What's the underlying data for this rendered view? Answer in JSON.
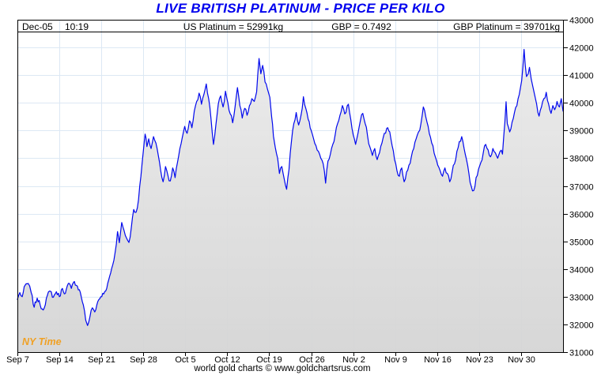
{
  "title": "LIVE BRITISH PLATINUM - PRICE PER KILO",
  "header": {
    "date": "Dec-05",
    "time": "10:19",
    "us_platinum": "US Platinum = 52991kg",
    "gbp_rate": "GBP = 0.7492",
    "gbp_platinum": "GBP Platinum = 39701kg"
  },
  "ny_time_label": "NY Time",
  "footer": "world gold charts © www.goldchartsrus.com",
  "colors": {
    "title_blue": "#0000EE",
    "line_blue": "#0008EE",
    "grid_blue": "#dce8f4",
    "fill_gray_top": "#eaeaea",
    "fill_gray_bottom": "#d5d5d5",
    "ny_time_orange": "#F0A125",
    "axis_black": "#000000"
  },
  "chart_data": {
    "type": "area",
    "title": "LIVE BRITISH PLATINUM - PRICE PER KILO",
    "xlabel": "",
    "ylabel": "",
    "grid": true,
    "legend": false,
    "ylim": [
      31000,
      43000
    ],
    "y_ticks": [
      31000,
      32000,
      33000,
      34000,
      35000,
      36000,
      37000,
      38000,
      39000,
      40000,
      41000,
      42000,
      43000
    ],
    "x_tick_labels": [
      "Sep 7",
      "Sep 14",
      "Sep 21",
      "Sep 28",
      "Oct 5",
      "Oct 12",
      "Oct 19",
      "Oct 26",
      "Nov 2",
      "Nov 9",
      "Nov 16",
      "Nov 23",
      "Nov 30"
    ],
    "x_tick_days": [
      0,
      7,
      14,
      21,
      28,
      35,
      42,
      49,
      56,
      63,
      70,
      77,
      84
    ],
    "x_domain_days": [
      0,
      91
    ],
    "start_date": "Sep 7",
    "end_datetime": "Dec-05 10:19",
    "last_value": 39701,
    "series": [
      {
        "name": "GBP Platinum (GBP per kilo)",
        "points": [
          [
            0,
            32900
          ],
          [
            0.4,
            33150
          ],
          [
            0.8,
            33000
          ],
          [
            1.3,
            33420
          ],
          [
            1.8,
            33480
          ],
          [
            2.3,
            33150
          ],
          [
            2.8,
            32620
          ],
          [
            3.3,
            32950
          ],
          [
            3.8,
            32700
          ],
          [
            4.3,
            32520
          ],
          [
            5,
            33050
          ],
          [
            5.5,
            33200
          ],
          [
            6,
            32980
          ],
          [
            6.5,
            33180
          ],
          [
            7,
            33000
          ],
          [
            7.5,
            33300
          ],
          [
            8,
            33120
          ],
          [
            8.5,
            33480
          ],
          [
            9,
            33300
          ],
          [
            9.5,
            33550
          ],
          [
            10,
            33380
          ],
          [
            10.5,
            33150
          ],
          [
            11,
            32700
          ],
          [
            11.4,
            32150
          ],
          [
            11.7,
            31960
          ],
          [
            12.1,
            32280
          ],
          [
            12.5,
            32600
          ],
          [
            12.9,
            32450
          ],
          [
            13.4,
            32820
          ],
          [
            13.9,
            33000
          ],
          [
            14.4,
            33100
          ],
          [
            14.9,
            33300
          ],
          [
            15.4,
            33750
          ],
          [
            15.9,
            34150
          ],
          [
            16.3,
            34600
          ],
          [
            16.7,
            35350
          ],
          [
            17,
            34950
          ],
          [
            17.4,
            35680
          ],
          [
            17.8,
            35380
          ],
          [
            18.2,
            35120
          ],
          [
            18.6,
            34960
          ],
          [
            19,
            35500
          ],
          [
            19.4,
            36150
          ],
          [
            19.8,
            36050
          ],
          [
            20.2,
            36500
          ],
          [
            20.6,
            37350
          ],
          [
            21,
            38250
          ],
          [
            21.3,
            38870
          ],
          [
            21.6,
            38420
          ],
          [
            21.9,
            38700
          ],
          [
            22.3,
            38350
          ],
          [
            22.7,
            38780
          ],
          [
            23.1,
            38550
          ],
          [
            23.5,
            38100
          ],
          [
            23.9,
            37550
          ],
          [
            24.3,
            37150
          ],
          [
            24.7,
            37700
          ],
          [
            25.1,
            37380
          ],
          [
            25.5,
            37180
          ],
          [
            25.9,
            37650
          ],
          [
            26.3,
            37300
          ],
          [
            26.7,
            37850
          ],
          [
            27.1,
            38350
          ],
          [
            27.5,
            38750
          ],
          [
            27.9,
            39150
          ],
          [
            28.3,
            38900
          ],
          [
            28.7,
            39350
          ],
          [
            29.1,
            39100
          ],
          [
            29.5,
            39700
          ],
          [
            29.9,
            40050
          ],
          [
            30.3,
            40350
          ],
          [
            30.7,
            39950
          ],
          [
            31.1,
            40300
          ],
          [
            31.5,
            40680
          ],
          [
            31.9,
            40150
          ],
          [
            32.3,
            39400
          ],
          [
            32.7,
            38500
          ],
          [
            33.1,
            39200
          ],
          [
            33.5,
            39950
          ],
          [
            33.9,
            40250
          ],
          [
            34.3,
            39850
          ],
          [
            34.7,
            40420
          ],
          [
            35.1,
            40000
          ],
          [
            35.5,
            39600
          ],
          [
            35.9,
            39280
          ],
          [
            36.3,
            39850
          ],
          [
            36.7,
            40550
          ],
          [
            37.1,
            39900
          ],
          [
            37.5,
            39450
          ],
          [
            37.9,
            39800
          ],
          [
            38.3,
            39550
          ],
          [
            38.7,
            39900
          ],
          [
            39.1,
            40150
          ],
          [
            39.5,
            40050
          ],
          [
            39.9,
            40400
          ],
          [
            40.3,
            41600
          ],
          [
            40.6,
            41050
          ],
          [
            40.9,
            41350
          ],
          [
            41.3,
            40750
          ],
          [
            41.7,
            40500
          ],
          [
            42.1,
            40200
          ],
          [
            42.4,
            39500
          ],
          [
            42.7,
            38800
          ],
          [
            43,
            38400
          ],
          [
            43.4,
            38000
          ],
          [
            43.7,
            37450
          ],
          [
            44.1,
            37700
          ],
          [
            44.5,
            37250
          ],
          [
            44.9,
            36880
          ],
          [
            45.3,
            37600
          ],
          [
            45.7,
            38600
          ],
          [
            46.1,
            39250
          ],
          [
            46.5,
            39650
          ],
          [
            46.9,
            39200
          ],
          [
            47.3,
            39550
          ],
          [
            47.7,
            40220
          ],
          [
            48.1,
            39800
          ],
          [
            48.5,
            39400
          ],
          [
            49,
            39000
          ],
          [
            49.4,
            38700
          ],
          [
            49.8,
            38450
          ],
          [
            50.2,
            38250
          ],
          [
            50.6,
            38000
          ],
          [
            51,
            37800
          ],
          [
            51.4,
            37100
          ],
          [
            51.8,
            37900
          ],
          [
            52.2,
            38150
          ],
          [
            52.6,
            38500
          ],
          [
            53,
            38850
          ],
          [
            53.4,
            39250
          ],
          [
            53.8,
            39550
          ],
          [
            54.2,
            39900
          ],
          [
            54.6,
            39600
          ],
          [
            55.2,
            39950
          ],
          [
            55.6,
            39400
          ],
          [
            56,
            38850
          ],
          [
            56.4,
            38500
          ],
          [
            56.8,
            38900
          ],
          [
            57.2,
            39350
          ],
          [
            57.6,
            39620
          ],
          [
            58,
            39250
          ],
          [
            58.4,
            38800
          ],
          [
            58.8,
            38400
          ],
          [
            59.2,
            38100
          ],
          [
            59.6,
            38350
          ],
          [
            60,
            37950
          ],
          [
            60.4,
            38200
          ],
          [
            60.8,
            38550
          ],
          [
            61.2,
            38900
          ],
          [
            61.6,
            39080
          ],
          [
            62.1,
            38950
          ],
          [
            62.5,
            38450
          ],
          [
            62.9,
            37950
          ],
          [
            63.3,
            37550
          ],
          [
            63.7,
            37350
          ],
          [
            64.1,
            37650
          ],
          [
            64.5,
            37150
          ],
          [
            64.9,
            37500
          ],
          [
            65.3,
            37750
          ],
          [
            65.7,
            38050
          ],
          [
            66.1,
            38350
          ],
          [
            66.5,
            38700
          ],
          [
            66.9,
            38950
          ],
          [
            67.3,
            39250
          ],
          [
            67.7,
            39850
          ],
          [
            68.1,
            39500
          ],
          [
            68.5,
            39150
          ],
          [
            68.9,
            38750
          ],
          [
            69.3,
            38450
          ],
          [
            69.7,
            38050
          ],
          [
            70.1,
            37750
          ],
          [
            70.5,
            37550
          ],
          [
            70.9,
            37350
          ],
          [
            71.3,
            37650
          ],
          [
            71.7,
            37450
          ],
          [
            72.1,
            37150
          ],
          [
            72.5,
            37500
          ],
          [
            72.9,
            37800
          ],
          [
            73.3,
            38250
          ],
          [
            73.7,
            38600
          ],
          [
            74.1,
            38780
          ],
          [
            74.5,
            38350
          ],
          [
            74.9,
            37950
          ],
          [
            75.3,
            37450
          ],
          [
            75.7,
            36980
          ],
          [
            76.1,
            36830
          ],
          [
            76.5,
            37300
          ],
          [
            76.9,
            37600
          ],
          [
            77.3,
            37850
          ],
          [
            77.7,
            38200
          ],
          [
            78.1,
            38500
          ],
          [
            78.5,
            38300
          ],
          [
            78.9,
            38050
          ],
          [
            79.3,
            38350
          ],
          [
            79.7,
            38200
          ],
          [
            80.1,
            38000
          ],
          [
            80.5,
            38250
          ],
          [
            80.9,
            38150
          ],
          [
            81.3,
            39300
          ],
          [
            81.5,
            40040
          ],
          [
            81.7,
            39250
          ],
          [
            82.1,
            38950
          ],
          [
            82.5,
            39300
          ],
          [
            82.9,
            39650
          ],
          [
            83.3,
            39900
          ],
          [
            83.7,
            40300
          ],
          [
            84.1,
            40800
          ],
          [
            84.3,
            41300
          ],
          [
            84.5,
            41930
          ],
          [
            84.7,
            41350
          ],
          [
            84.9,
            40950
          ],
          [
            85.2,
            41050
          ],
          [
            85.4,
            41280
          ],
          [
            85.7,
            40850
          ],
          [
            86,
            40550
          ],
          [
            86.3,
            40250
          ],
          [
            86.6,
            39950
          ],
          [
            87,
            39520
          ],
          [
            87.4,
            39850
          ],
          [
            87.8,
            40150
          ],
          [
            88.2,
            40380
          ],
          [
            88.6,
            39950
          ],
          [
            89,
            39620
          ],
          [
            89.3,
            39900
          ],
          [
            89.6,
            39750
          ],
          [
            90,
            40050
          ],
          [
            90.4,
            39850
          ],
          [
            90.7,
            40150
          ],
          [
            91,
            39701
          ]
        ]
      }
    ]
  }
}
